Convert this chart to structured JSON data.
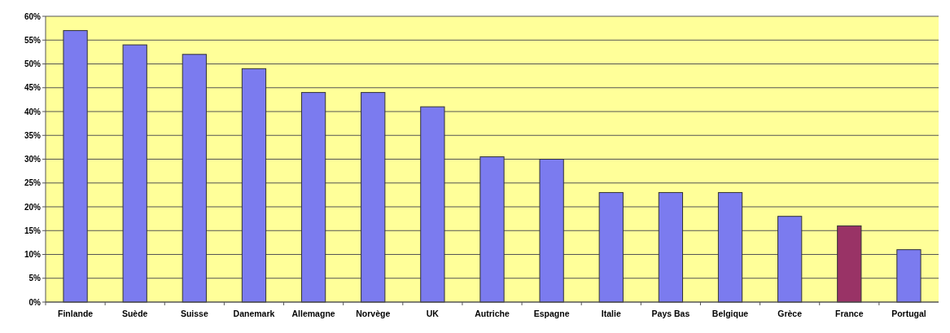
{
  "chart_data": {
    "type": "bar",
    "categories": [
      "Finlande",
      "Suède",
      "Suisse",
      "Danemark",
      "Allemagne",
      "Norvège",
      "UK",
      "Autriche",
      "Espagne",
      "Italie",
      "Pays Bas",
      "Belgique",
      "Grèce",
      "France",
      "Portugal"
    ],
    "values": [
      57,
      54,
      52,
      49,
      44,
      44,
      41,
      30.5,
      30,
      23,
      23,
      23,
      18,
      16,
      11
    ],
    "colors": [
      "#7b7bef",
      "#7b7bef",
      "#7b7bef",
      "#7b7bef",
      "#7b7bef",
      "#7b7bef",
      "#7b7bef",
      "#7b7bef",
      "#7b7bef",
      "#7b7bef",
      "#7b7bef",
      "#7b7bef",
      "#7b7bef",
      "#993366",
      "#7b7bef"
    ],
    "ylim": [
      0,
      60
    ],
    "yticks": [
      {
        "value": 0,
        "label": "0%"
      },
      {
        "value": 5,
        "label": "5%"
      },
      {
        "value": 10,
        "label": "10%"
      },
      {
        "value": 15,
        "label": "15%"
      },
      {
        "value": 20,
        "label": "20%"
      },
      {
        "value": 25,
        "label": "25%"
      },
      {
        "value": 30,
        "label": "30%"
      },
      {
        "value": 35,
        "label": "35%"
      },
      {
        "value": 40,
        "label": "40%"
      },
      {
        "value": 45,
        "label": "45%"
      },
      {
        "value": 50,
        "label": "50%"
      },
      {
        "value": 55,
        "label": "55%"
      },
      {
        "value": 60,
        "label": "60%"
      }
    ],
    "grid": "y"
  }
}
